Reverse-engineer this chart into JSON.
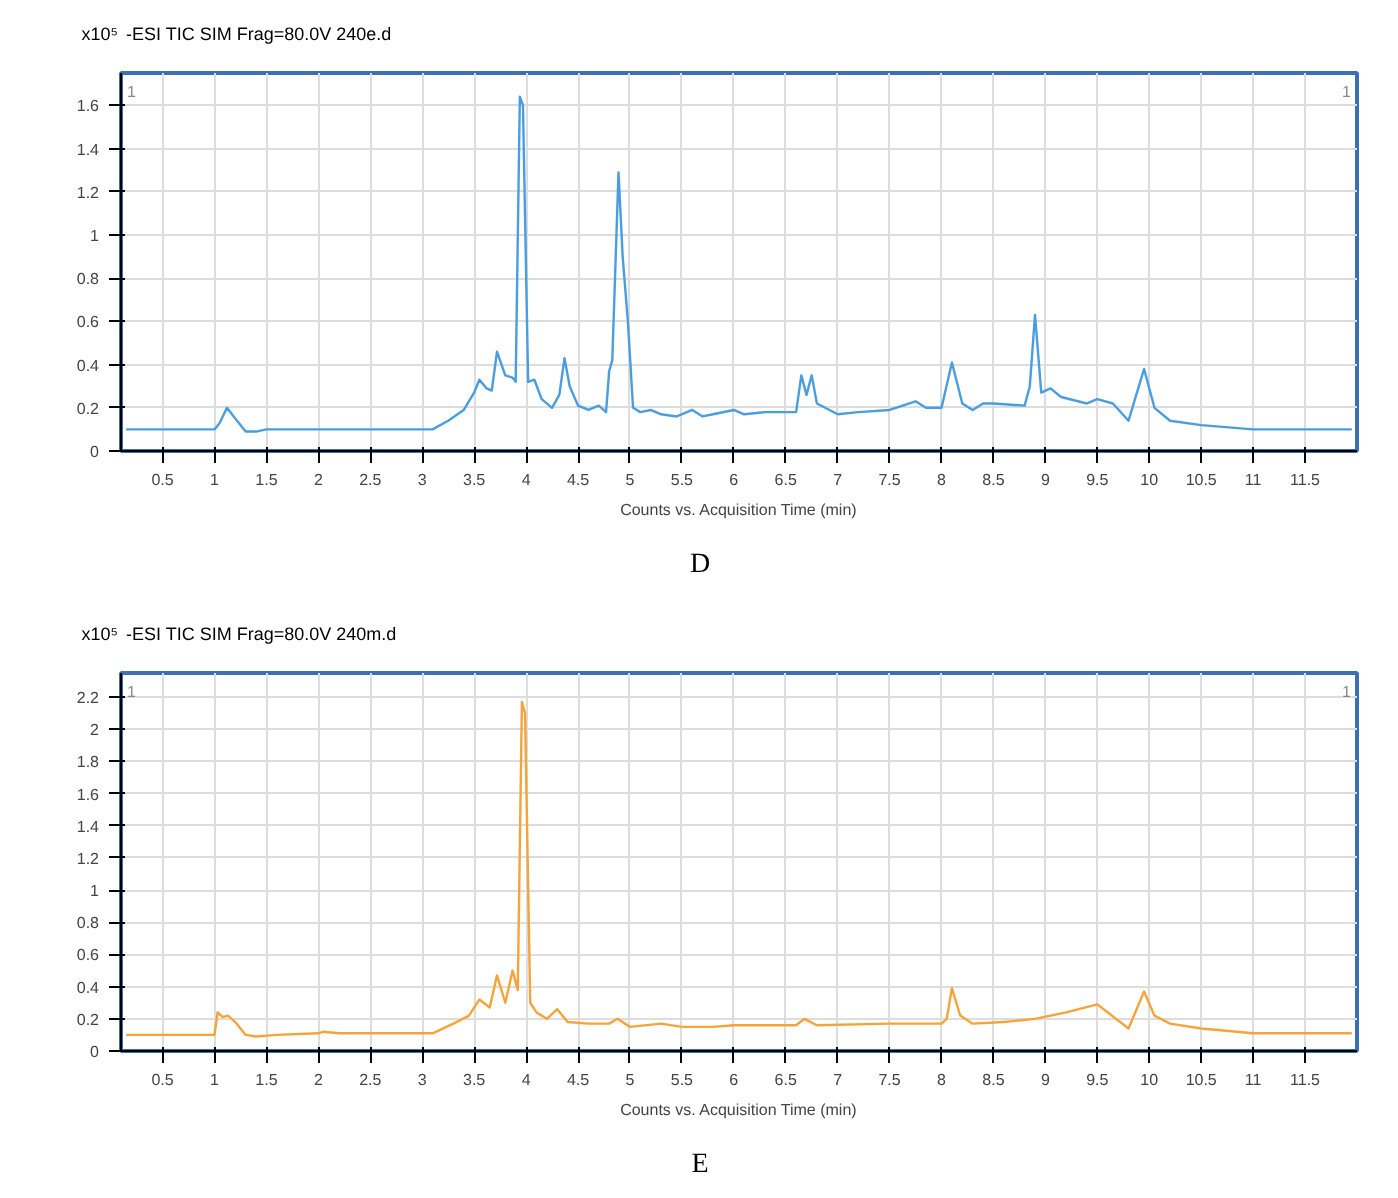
{
  "chart_data": [
    {
      "type": "line",
      "title": "-ESI TIC SIM Frag=80.0V 240e.d",
      "xlabel": "Counts vs. Acquisition Time (min)",
      "ylabel": "x10⁵",
      "annotations": [
        "1",
        "1",
        "D"
      ],
      "x": [
        0.15,
        1.0,
        1.05,
        1.12,
        1.2,
        1.3,
        1.4,
        1.5,
        1.6,
        2.5,
        3.1,
        3.25,
        3.4,
        3.5,
        3.55,
        3.62,
        3.67,
        3.72,
        3.8,
        3.87,
        3.9,
        3.94,
        3.97,
        4.02,
        4.08,
        4.15,
        4.25,
        4.32,
        4.37,
        4.42,
        4.5,
        4.6,
        4.7,
        4.77,
        4.8,
        4.83,
        4.89,
        4.93,
        4.98,
        5.03,
        5.1,
        5.2,
        5.3,
        5.45,
        5.6,
        5.7,
        5.8,
        6.0,
        6.1,
        6.3,
        6.6,
        6.65,
        6.7,
        6.75,
        6.8,
        7.0,
        7.2,
        7.5,
        7.75,
        7.85,
        8.0,
        8.1,
        8.2,
        8.3,
        8.4,
        8.5,
        8.8,
        8.85,
        8.9,
        8.96,
        9.05,
        9.15,
        9.4,
        9.5,
        9.65,
        9.8,
        9.95,
        10.05,
        10.2,
        10.5,
        11.0,
        11.5,
        11.95
      ],
      "values": [
        0.1,
        0.1,
        0.13,
        0.2,
        0.15,
        0.09,
        0.09,
        0.1,
        0.1,
        0.1,
        0.1,
        0.14,
        0.19,
        0.27,
        0.33,
        0.29,
        0.28,
        0.46,
        0.35,
        0.34,
        0.32,
        1.64,
        1.6,
        0.32,
        0.33,
        0.24,
        0.2,
        0.26,
        0.43,
        0.3,
        0.21,
        0.19,
        0.21,
        0.18,
        0.37,
        0.42,
        1.29,
        0.9,
        0.6,
        0.2,
        0.18,
        0.19,
        0.17,
        0.16,
        0.19,
        0.16,
        0.17,
        0.19,
        0.17,
        0.18,
        0.18,
        0.35,
        0.26,
        0.35,
        0.22,
        0.17,
        0.18,
        0.19,
        0.23,
        0.2,
        0.2,
        0.41,
        0.22,
        0.19,
        0.22,
        0.22,
        0.21,
        0.3,
        0.63,
        0.27,
        0.29,
        0.25,
        0.22,
        0.24,
        0.22,
        0.14,
        0.38,
        0.2,
        0.14,
        0.12,
        0.1,
        0.1,
        0.1
      ],
      "color": "#4a9ee0",
      "xlim": [
        0.1,
        12.0
      ],
      "ylim": [
        0,
        1.75
      ],
      "xticks": [
        0.5,
        1,
        1.5,
        2,
        2.5,
        3,
        3.5,
        4,
        4.5,
        5,
        5.5,
        6,
        6.5,
        7,
        7.5,
        8,
        8.5,
        9,
        9.5,
        10,
        10.5,
        11,
        11.5
      ],
      "yticks": [
        0,
        0.2,
        0.4,
        0.6,
        0.8,
        1,
        1.2,
        1.4,
        1.6
      ],
      "grid": true
    },
    {
      "type": "line",
      "title": "-ESI TIC SIM Frag=80.0V 240m.d",
      "xlabel": "Counts vs. Acquisition Time (min)",
      "ylabel": "x10⁵",
      "annotations": [
        "1",
        "1",
        "E"
      ],
      "x": [
        0.15,
        1.0,
        1.03,
        1.08,
        1.13,
        1.2,
        1.3,
        1.4,
        1.6,
        2.0,
        2.05,
        2.2,
        3.1,
        3.3,
        3.45,
        3.55,
        3.65,
        3.72,
        3.8,
        3.87,
        3.92,
        3.96,
        3.99,
        4.04,
        4.1,
        4.2,
        4.3,
        4.4,
        4.6,
        4.8,
        4.88,
        5.0,
        5.3,
        5.5,
        5.8,
        6.0,
        6.6,
        6.68,
        6.8,
        7.5,
        8.0,
        8.05,
        8.1,
        8.18,
        8.3,
        8.6,
        8.9,
        9.2,
        9.5,
        9.62,
        9.8,
        9.95,
        10.05,
        10.2,
        10.5,
        11.0,
        11.5,
        11.95
      ],
      "values": [
        0.1,
        0.1,
        0.24,
        0.21,
        0.22,
        0.18,
        0.1,
        0.09,
        0.1,
        0.11,
        0.12,
        0.11,
        0.11,
        0.17,
        0.22,
        0.32,
        0.27,
        0.47,
        0.3,
        0.5,
        0.38,
        2.17,
        2.1,
        0.3,
        0.24,
        0.2,
        0.26,
        0.18,
        0.17,
        0.17,
        0.2,
        0.15,
        0.17,
        0.15,
        0.15,
        0.16,
        0.16,
        0.2,
        0.16,
        0.17,
        0.17,
        0.2,
        0.39,
        0.22,
        0.17,
        0.18,
        0.2,
        0.24,
        0.29,
        0.23,
        0.14,
        0.37,
        0.22,
        0.17,
        0.14,
        0.11,
        0.11,
        0.11
      ],
      "color": "#f5a43a",
      "xlim": [
        0.1,
        12.0
      ],
      "ylim": [
        0,
        2.35
      ],
      "xticks": [
        0.5,
        1,
        1.5,
        2,
        2.5,
        3,
        3.5,
        4,
        4.5,
        5,
        5.5,
        6,
        6.5,
        7,
        7.5,
        8,
        8.5,
        9,
        9.5,
        10,
        10.5,
        11,
        11.5
      ],
      "yticks": [
        0,
        0.2,
        0.4,
        0.6,
        0.8,
        1,
        1.2,
        1.4,
        1.6,
        1.8,
        2,
        2.2
      ],
      "grid": true
    }
  ]
}
